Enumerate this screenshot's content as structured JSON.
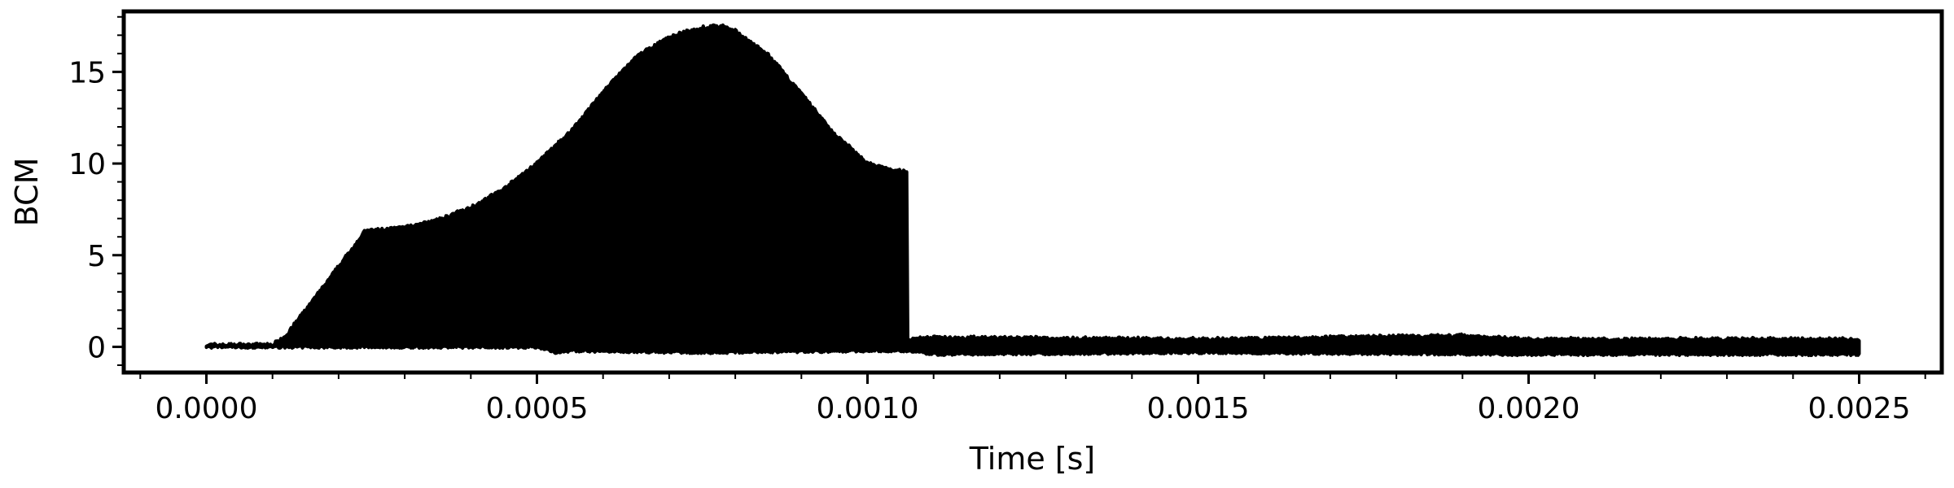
{
  "chart_data": {
    "type": "area",
    "title": "",
    "xlabel": "Time [s]",
    "ylabel": "BCM",
    "xlim": [
      -0.000125,
      0.002625
    ],
    "ylim": [
      -1.4,
      18.3
    ],
    "x_ticks": [
      0.0,
      0.0005,
      0.001,
      0.0015,
      0.002,
      0.0025
    ],
    "x_tick_labels": [
      "0.0000",
      "0.0005",
      "0.0010",
      "0.0015",
      "0.0020",
      "0.0025"
    ],
    "y_ticks": [
      0,
      5,
      10,
      15
    ],
    "y_tick_labels": [
      "0",
      "5",
      "10",
      "15"
    ],
    "grid": false,
    "color": "#000000",
    "series": [
      {
        "upper_envelope": {
          "x": [
            0.0,
            0.0001,
            0.00012,
            0.00018,
            0.00024,
            0.0003,
            0.00035,
            0.0004,
            0.00045,
            0.0005,
            0.00055,
            0.0006,
            0.00065,
            0.0007,
            0.00075,
            0.00078,
            0.0008,
            0.00085,
            0.0009,
            0.00095,
            0.001,
            0.00103,
            0.00106,
            0.00106,
            0.0011,
            0.0015,
            0.0019,
            0.002,
            0.0025
          ],
          "y": [
            0.1,
            0.1,
            0.6,
            3.4,
            6.3,
            6.5,
            6.9,
            7.6,
            8.6,
            10.0,
            11.7,
            13.9,
            15.8,
            16.9,
            17.4,
            17.5,
            17.2,
            15.9,
            13.8,
            11.6,
            10.0,
            9.7,
            9.5,
            0.4,
            0.5,
            0.4,
            0.6,
            0.4,
            0.4
          ]
        },
        "lower_envelope": {
          "x": [
            0.0,
            0.0001,
            0.0002,
            0.0005,
            0.00053,
            0.00055,
            0.00075,
            0.001,
            0.00106,
            0.0011,
            0.0015,
            0.002,
            0.0025
          ],
          "y": [
            0.0,
            0.0,
            0.0,
            0.0,
            -0.3,
            -0.2,
            -0.3,
            -0.2,
            -0.2,
            -0.4,
            -0.3,
            -0.4,
            -0.4
          ]
        }
      }
    ]
  }
}
